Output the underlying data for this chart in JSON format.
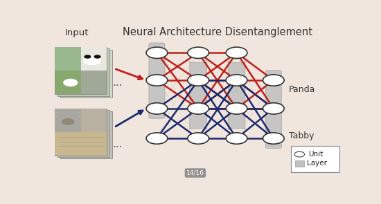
{
  "title": "Neural Architecture Disentanglement",
  "input_label": "Input",
  "bg_color": "#f0e6de",
  "layer_bg_color": "#c0c0c0",
  "node_face_color": "white",
  "node_edge_color": "#333333",
  "red_color": "#c0201a",
  "blue_color": "#1a2a6e",
  "gray_connection_color": "#d0bfb0",
  "panda_label": "Panda",
  "tabby_label": "Tabby",
  "legend_unit": "Unit",
  "legend_layer": "Layer",
  "bottom_label": "14/16"
}
